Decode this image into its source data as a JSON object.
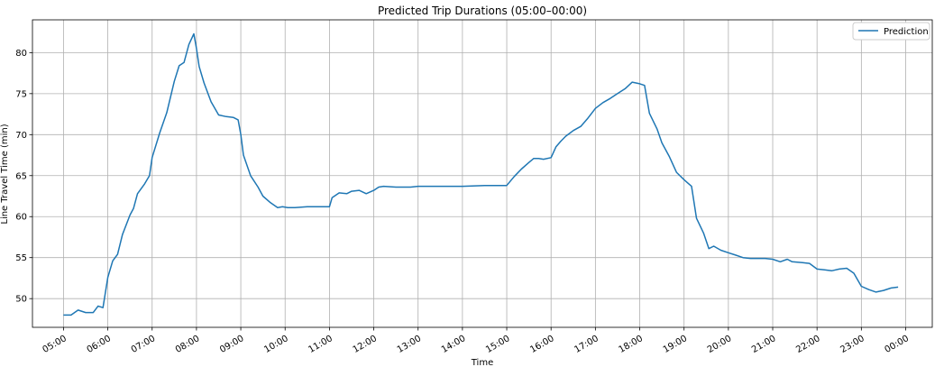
{
  "chart_data": {
    "type": "line",
    "title": "Predicted Trip Durations (05:00–00:00)",
    "xlabel": "Time",
    "ylabel": "Line Travel Time (min)",
    "xlim_hours": [
      4.3,
      24.6
    ],
    "ylim": [
      46.5,
      84
    ],
    "grid": true,
    "legend_position": "top-right",
    "x_ticks": [
      {
        "h": 5,
        "label": "05:00"
      },
      {
        "h": 6,
        "label": "06:00"
      },
      {
        "h": 7,
        "label": "07:00"
      },
      {
        "h": 8,
        "label": "08:00"
      },
      {
        "h": 9,
        "label": "09:00"
      },
      {
        "h": 10,
        "label": "10:00"
      },
      {
        "h": 11,
        "label": "11:00"
      },
      {
        "h": 12,
        "label": "12:00"
      },
      {
        "h": 13,
        "label": "13:00"
      },
      {
        "h": 14,
        "label": "14:00"
      },
      {
        "h": 15,
        "label": "15:00"
      },
      {
        "h": 16,
        "label": "16:00"
      },
      {
        "h": 17,
        "label": "17:00"
      },
      {
        "h": 18,
        "label": "18:00"
      },
      {
        "h": 19,
        "label": "19:00"
      },
      {
        "h": 20,
        "label": "20:00"
      },
      {
        "h": 21,
        "label": "21:00"
      },
      {
        "h": 22,
        "label": "22:00"
      },
      {
        "h": 23,
        "label": "23:00"
      },
      {
        "h": 24,
        "label": "00:00"
      }
    ],
    "y_ticks": [
      50,
      55,
      60,
      65,
      70,
      75,
      80
    ],
    "series": [
      {
        "name": "Prediction",
        "color": "#1f77b4",
        "points": [
          [
            5.0,
            48.0
          ],
          [
            5.17,
            48.0
          ],
          [
            5.33,
            48.6
          ],
          [
            5.5,
            48.3
          ],
          [
            5.67,
            48.3
          ],
          [
            5.78,
            49.1
          ],
          [
            5.89,
            48.9
          ],
          [
            6.0,
            52.6
          ],
          [
            6.11,
            54.6
          ],
          [
            6.22,
            55.4
          ],
          [
            6.33,
            57.8
          ],
          [
            6.5,
            60.2
          ],
          [
            6.58,
            61.0
          ],
          [
            6.67,
            62.8
          ],
          [
            6.83,
            64.0
          ],
          [
            6.94,
            65.0
          ],
          [
            7.0,
            67.2
          ],
          [
            7.17,
            70.2
          ],
          [
            7.33,
            72.7
          ],
          [
            7.5,
            76.5
          ],
          [
            7.61,
            78.4
          ],
          [
            7.72,
            78.8
          ],
          [
            7.83,
            81.0
          ],
          [
            7.94,
            82.3
          ],
          [
            8.0,
            80.5
          ],
          [
            8.06,
            78.3
          ],
          [
            8.17,
            76.3
          ],
          [
            8.33,
            74.0
          ],
          [
            8.5,
            72.4
          ],
          [
            8.67,
            72.2
          ],
          [
            8.83,
            72.1
          ],
          [
            8.94,
            71.8
          ],
          [
            9.0,
            70.0
          ],
          [
            9.06,
            67.5
          ],
          [
            9.22,
            65.0
          ],
          [
            9.39,
            63.6
          ],
          [
            9.5,
            62.5
          ],
          [
            9.67,
            61.7
          ],
          [
            9.83,
            61.1
          ],
          [
            9.94,
            61.2
          ],
          [
            10.06,
            61.1
          ],
          [
            10.22,
            61.1
          ],
          [
            10.5,
            61.2
          ],
          [
            10.83,
            61.2
          ],
          [
            11.0,
            61.2
          ],
          [
            11.06,
            62.3
          ],
          [
            11.22,
            62.9
          ],
          [
            11.39,
            62.8
          ],
          [
            11.5,
            63.1
          ],
          [
            11.67,
            63.2
          ],
          [
            11.83,
            62.8
          ],
          [
            12.0,
            63.2
          ],
          [
            12.11,
            63.6
          ],
          [
            12.22,
            63.7
          ],
          [
            12.5,
            63.6
          ],
          [
            12.83,
            63.6
          ],
          [
            13.0,
            63.7
          ],
          [
            13.5,
            63.7
          ],
          [
            14.0,
            63.7
          ],
          [
            14.5,
            63.8
          ],
          [
            15.0,
            63.8
          ],
          [
            15.17,
            64.9
          ],
          [
            15.33,
            65.8
          ],
          [
            15.5,
            66.6
          ],
          [
            15.61,
            67.1
          ],
          [
            15.72,
            67.1
          ],
          [
            15.83,
            67.0
          ],
          [
            16.0,
            67.2
          ],
          [
            16.11,
            68.5
          ],
          [
            16.22,
            69.2
          ],
          [
            16.33,
            69.8
          ],
          [
            16.5,
            70.5
          ],
          [
            16.67,
            71.0
          ],
          [
            16.83,
            72.0
          ],
          [
            17.0,
            73.2
          ],
          [
            17.17,
            73.9
          ],
          [
            17.33,
            74.4
          ],
          [
            17.5,
            75.0
          ],
          [
            17.67,
            75.6
          ],
          [
            17.83,
            76.4
          ],
          [
            18.0,
            76.2
          ],
          [
            18.11,
            76.0
          ],
          [
            18.22,
            72.6
          ],
          [
            18.39,
            70.7
          ],
          [
            18.5,
            69.0
          ],
          [
            18.67,
            67.3
          ],
          [
            18.83,
            65.4
          ],
          [
            19.0,
            64.5
          ],
          [
            19.17,
            63.7
          ],
          [
            19.28,
            59.8
          ],
          [
            19.44,
            58.0
          ],
          [
            19.56,
            56.1
          ],
          [
            19.67,
            56.4
          ],
          [
            19.83,
            55.9
          ],
          [
            20.0,
            55.6
          ],
          [
            20.17,
            55.3
          ],
          [
            20.33,
            55.0
          ],
          [
            20.5,
            54.9
          ],
          [
            20.83,
            54.9
          ],
          [
            21.0,
            54.8
          ],
          [
            21.17,
            54.5
          ],
          [
            21.33,
            54.8
          ],
          [
            21.44,
            54.5
          ],
          [
            21.67,
            54.4
          ],
          [
            21.83,
            54.3
          ],
          [
            22.0,
            53.6
          ],
          [
            22.17,
            53.5
          ],
          [
            22.33,
            53.4
          ],
          [
            22.5,
            53.6
          ],
          [
            22.67,
            53.7
          ],
          [
            22.83,
            53.1
          ],
          [
            23.0,
            51.5
          ],
          [
            23.17,
            51.1
          ],
          [
            23.33,
            50.8
          ],
          [
            23.5,
            51.0
          ],
          [
            23.67,
            51.3
          ],
          [
            23.83,
            51.4
          ]
        ]
      }
    ]
  }
}
